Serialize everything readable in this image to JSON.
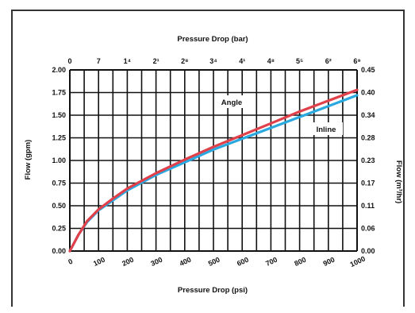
{
  "chart_data": {
    "type": "line",
    "title": "",
    "top_axis": {
      "label": "Pressure Drop (bar)",
      "ticks": [
        "0",
        "7",
        "1⁴",
        "2¹",
        "2⁸",
        "3⁴",
        "4¹",
        "4⁸",
        "5⁵",
        "6²",
        "6⁹"
      ]
    },
    "bottom_axis": {
      "label": "Pressure Drop (psi)",
      "ticks": [
        "0",
        "100",
        "200",
        "300",
        "400",
        "500",
        "600",
        "700",
        "800",
        "900",
        "1000"
      ],
      "range": [
        0,
        1000
      ]
    },
    "left_axis": {
      "label": "Flow (gpm)",
      "ticks": [
        "0.00",
        "0.25",
        "0.50",
        "0.75",
        "1.00",
        "1.25",
        "1.50",
        "1.75",
        "2.00"
      ],
      "range": [
        0,
        2.0
      ]
    },
    "right_axis": {
      "label": "Flow (m³/hr)",
      "ticks": [
        "0.00",
        "0.06",
        "0.11",
        "0.17",
        "0.23",
        "0.28",
        "0.34",
        "0.40",
        "0.45"
      ]
    },
    "x": [
      0,
      30,
      60,
      100,
      150,
      200,
      300,
      400,
      500,
      600,
      700,
      800,
      900,
      1000
    ],
    "series": [
      {
        "name": "Angle",
        "color": "#e0404a",
        "values": [
          0,
          0.18,
          0.33,
          0.46,
          0.58,
          0.69,
          0.86,
          1.01,
          1.15,
          1.28,
          1.41,
          1.54,
          1.66,
          1.78
        ]
      },
      {
        "name": "Inline",
        "color": "#2aa8e0",
        "values": [
          0,
          0.18,
          0.32,
          0.45,
          0.56,
          0.67,
          0.84,
          0.98,
          1.12,
          1.24,
          1.36,
          1.48,
          1.6,
          1.72
        ]
      }
    ],
    "annotations": [
      "Angle",
      "Inline"
    ],
    "grid": true
  }
}
